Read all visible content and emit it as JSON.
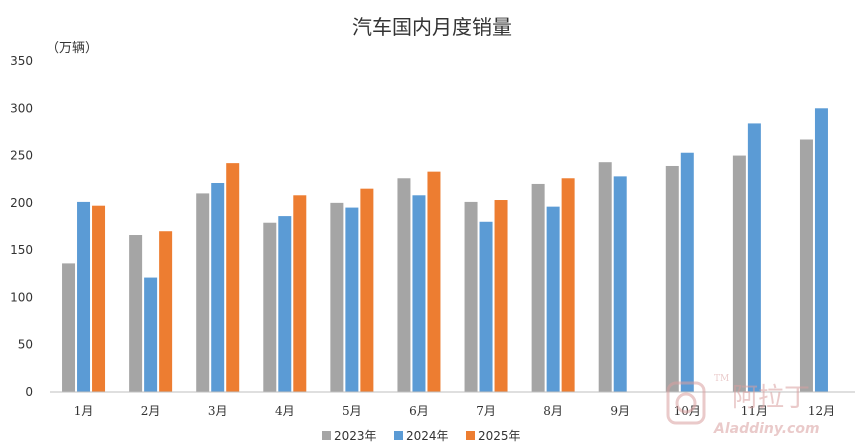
{
  "chart_data": {
    "type": "bar",
    "title": "汽车国内月度销量",
    "unit_label": "（万辆）",
    "categories": [
      "1月",
      "2月",
      "3月",
      "4月",
      "5月",
      "6月",
      "7月",
      "8月",
      "9月",
      "10月",
      "11月",
      "12月"
    ],
    "series": [
      {
        "name": "2023年",
        "color": "#a5a5a5",
        "values": [
          136,
          166,
          210,
          179,
          200,
          226,
          201,
          220,
          243,
          239,
          250,
          267
        ]
      },
      {
        "name": "2024年",
        "color": "#5b9bd5",
        "values": [
          201,
          121,
          221,
          186,
          195,
          208,
          180,
          196,
          228,
          253,
          284,
          300
        ]
      },
      {
        "name": "2025年",
        "color": "#ed7d31",
        "values": [
          197,
          170,
          242,
          208,
          215,
          233,
          203,
          226,
          null,
          null,
          null,
          null
        ]
      }
    ],
    "ylim": [
      0,
      350
    ],
    "yticks": [
      0,
      50,
      100,
      150,
      200,
      250,
      300,
      350
    ],
    "grid": false,
    "legend_position": "bottom"
  },
  "watermark": {
    "text": "阿拉丁",
    "url": "Aladdiny.com",
    "tm": "TM",
    "color": "#d9a0a0"
  }
}
